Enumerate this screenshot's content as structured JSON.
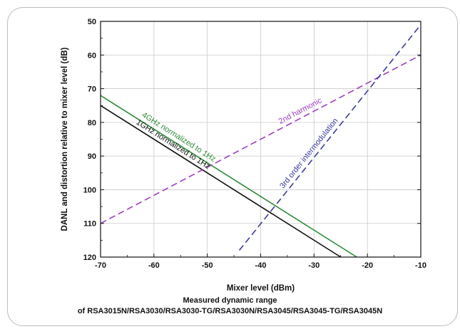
{
  "chart_data": {
    "type": "line",
    "xlabel": "Mixer level (dBm)",
    "ylabel": "DANL and distortion relative to mixer level (dB)",
    "xlim": [
      -70,
      -10
    ],
    "ylim": [
      120,
      50
    ],
    "y_inverted": true,
    "x_ticks": [
      "-70",
      "-60",
      "-50",
      "-40",
      "-30",
      "-20",
      "-10"
    ],
    "y_ticks": [
      "50",
      "60",
      "70",
      "80",
      "90",
      "100",
      "110",
      "120"
    ],
    "grid": true,
    "series": [
      {
        "name": "4GHz normalized to 1Hz",
        "color": "#2e8b3a",
        "dash": "solid",
        "x": [
          -70,
          -22
        ],
        "y": [
          72,
          120
        ]
      },
      {
        "name": "1GHz normalized to 1Hz",
        "color": "#111111",
        "dash": "solid",
        "x": [
          -70,
          -25
        ],
        "y": [
          75,
          120
        ]
      },
      {
        "name": "2nd harmonic",
        "color": "#9b3fbf",
        "dash": "dashed",
        "x": [
          -70,
          -10
        ],
        "y": [
          110,
          60
        ]
      },
      {
        "name": "3rd order intermodulation",
        "color": "#3b3b9e",
        "dash": "dashed",
        "x": [
          -44,
          -10
        ],
        "y": [
          118,
          51
        ]
      }
    ],
    "subtitle": "Measured dynamic range",
    "caption": "of RSA3015N/RSA3030/RSA3030-TG/RSA3030N/RSA3045/RSA3045-TG/RSA3045N"
  }
}
